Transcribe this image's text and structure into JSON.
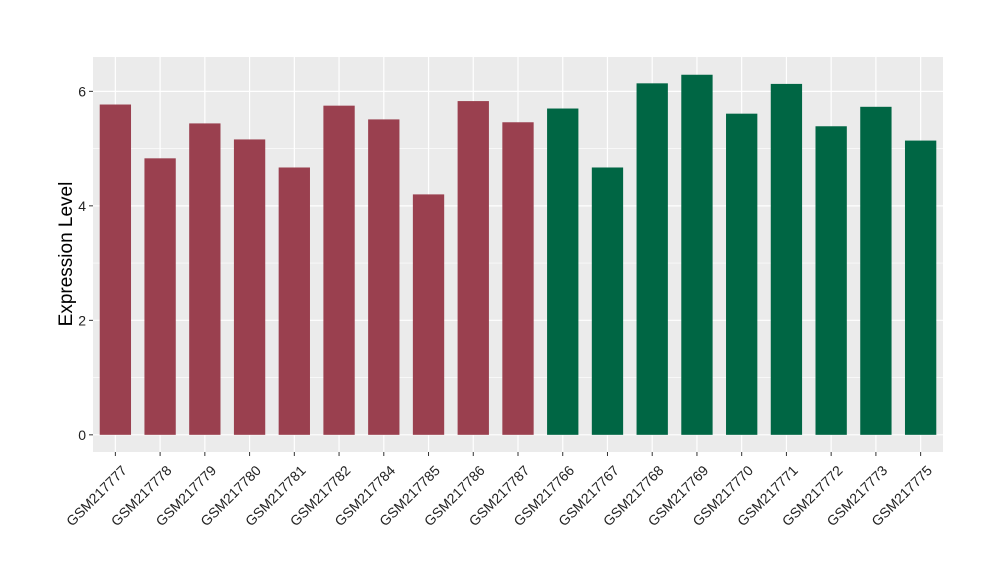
{
  "chart_data": {
    "type": "bar",
    "ylabel": "Expression Level",
    "xlabel": "",
    "ylim": [
      -0.3,
      6.6
    ],
    "yticks": [
      0,
      2,
      4,
      6
    ],
    "grid": true,
    "legend": "none",
    "panel_color": "#ebebeb",
    "grid_color": "#ffffff",
    "categories": [
      "GSM217777",
      "GSM217778",
      "GSM217779",
      "GSM217780",
      "GSM217781",
      "GSM217782",
      "GSM217784",
      "GSM217785",
      "GSM217786",
      "GSM217787",
      "GSM217766",
      "GSM217767",
      "GSM217768",
      "GSM217769",
      "GSM217770",
      "GSM217771",
      "GSM217772",
      "GSM217773",
      "GSM217775"
    ],
    "values": [
      5.77,
      4.83,
      5.44,
      5.16,
      4.67,
      5.75,
      5.51,
      4.2,
      5.83,
      5.46,
      5.7,
      4.67,
      6.14,
      6.29,
      5.61,
      6.13,
      5.39,
      5.73,
      5.14
    ],
    "colors": [
      "#9a404f",
      "#9a404f",
      "#9a404f",
      "#9a404f",
      "#9a404f",
      "#9a404f",
      "#9a404f",
      "#9a404f",
      "#9a404f",
      "#9a404f",
      "#006644",
      "#006644",
      "#006644",
      "#006644",
      "#006644",
      "#006644",
      "#006644",
      "#006644",
      "#006644"
    ]
  }
}
